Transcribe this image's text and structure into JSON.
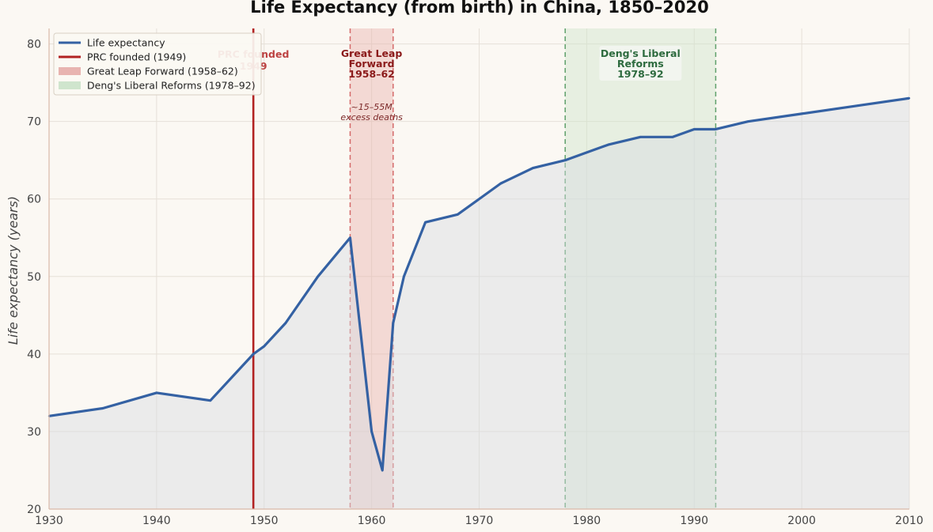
{
  "chart_data": {
    "type": "line",
    "title": "Life Expectancy (from birth) in China, 1850–2020",
    "xlabel": "",
    "ylabel": "Life expectancy (years)",
    "xlim": [
      1930,
      2010
    ],
    "ylim": [
      20,
      82
    ],
    "x_ticks": [
      1930,
      1940,
      1950,
      1960,
      1970,
      1980,
      1990,
      2000,
      2010
    ],
    "y_ticks": [
      20,
      30,
      40,
      50,
      60,
      70,
      80
    ],
    "grid": true,
    "legend_position": "top-left",
    "series": [
      {
        "name": "Life expectancy",
        "color": "#3461a3",
        "fill_area": true,
        "points": [
          [
            1930,
            32
          ],
          [
            1935,
            33
          ],
          [
            1940,
            35
          ],
          [
            1945,
            34
          ],
          [
            1949,
            40
          ],
          [
            1950,
            41
          ],
          [
            1952,
            44
          ],
          [
            1955,
            50
          ],
          [
            1958,
            55
          ],
          [
            1960,
            30
          ],
          [
            1961,
            25
          ],
          [
            1962,
            44
          ],
          [
            1963,
            50
          ],
          [
            1965,
            57
          ],
          [
            1968,
            58
          ],
          [
            1970,
            60
          ],
          [
            1972,
            62
          ],
          [
            1975,
            64
          ],
          [
            1978,
            65
          ],
          [
            1980,
            66
          ],
          [
            1982,
            67
          ],
          [
            1985,
            68
          ],
          [
            1988,
            68
          ],
          [
            1990,
            69
          ],
          [
            1992,
            69
          ],
          [
            1995,
            70
          ],
          [
            2000,
            71
          ],
          [
            2005,
            72
          ],
          [
            2010,
            73
          ]
        ]
      }
    ],
    "vline": {
      "name": "PRC founded (1949)",
      "x": 1949,
      "color": "#b22222"
    },
    "spans": [
      {
        "name": "Great Leap Forward (1958–62)",
        "x0": 1958,
        "x1": 1962,
        "fill": "#e8b4b0",
        "edge": "#d46a6a"
      },
      {
        "name": "Deng's Liberal Reforms (1978–92)",
        "x0": 1978,
        "x1": 1992,
        "fill": "#cfe5cd",
        "edge": "#5fa06b"
      }
    ],
    "annotations": {
      "prc": {
        "lines": [
          "PRC founded",
          "1949"
        ],
        "color": "#b22222"
      },
      "glf": {
        "lines": [
          "Great Leap",
          "Forward",
          "1958–62"
        ],
        "color": "#8b1a1a"
      },
      "glf_note": {
        "lines": [
          "~15–55M",
          "excess deaths"
        ]
      },
      "deng": {
        "lines": [
          "Deng's Liberal",
          "Reforms",
          "1978–92"
        ],
        "color": "#2e6b3f"
      }
    },
    "legend": [
      {
        "label": "Life expectancy",
        "kind": "line",
        "color": "#3461a3"
      },
      {
        "label": "PRC founded (1949)",
        "kind": "line",
        "color": "#b22222"
      },
      {
        "label": "Great Leap Forward (1958–62)",
        "kind": "patch",
        "color": "#e8b4b0"
      },
      {
        "label": "Deng's Liberal Reforms (1978–92)",
        "kind": "patch",
        "color": "#cfe5cd"
      }
    ]
  }
}
